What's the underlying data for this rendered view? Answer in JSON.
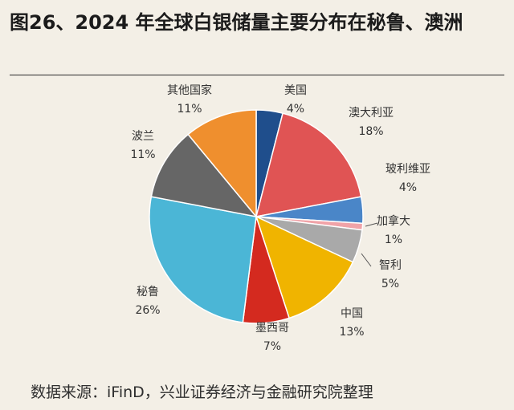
{
  "page": {
    "title": "图26、2024 年全球白银储量主要分布在秘鲁、澳洲",
    "source": "数据来源：iFinD，兴业证券经济与金融研究院整理"
  },
  "chart_data": {
    "type": "pie",
    "title": "2024 年全球白银储量主要分布在秘鲁、澳洲",
    "unit": "%",
    "slices": [
      {
        "name": "美国",
        "value": 4,
        "color": "#1f4e8c"
      },
      {
        "name": "澳大利亚",
        "value": 18,
        "color": "#e05454"
      },
      {
        "name": "玻利维亚",
        "value": 4,
        "color": "#4a86c8"
      },
      {
        "name": "加拿大",
        "value": 1,
        "color": "#f0a3a8"
      },
      {
        "name": "智利",
        "value": 5,
        "color": "#a9a9a9"
      },
      {
        "name": "中国",
        "value": 13,
        "color": "#f0b400"
      },
      {
        "name": "墨西哥",
        "value": 7,
        "color": "#d42a1f"
      },
      {
        "name": "秘鲁",
        "value": 26,
        "color": "#4bb6d6"
      },
      {
        "name": "波兰",
        "value": 11,
        "color": "#666666"
      },
      {
        "name": "其他国家",
        "value": 11,
        "color": "#ef8f2e"
      }
    ]
  }
}
